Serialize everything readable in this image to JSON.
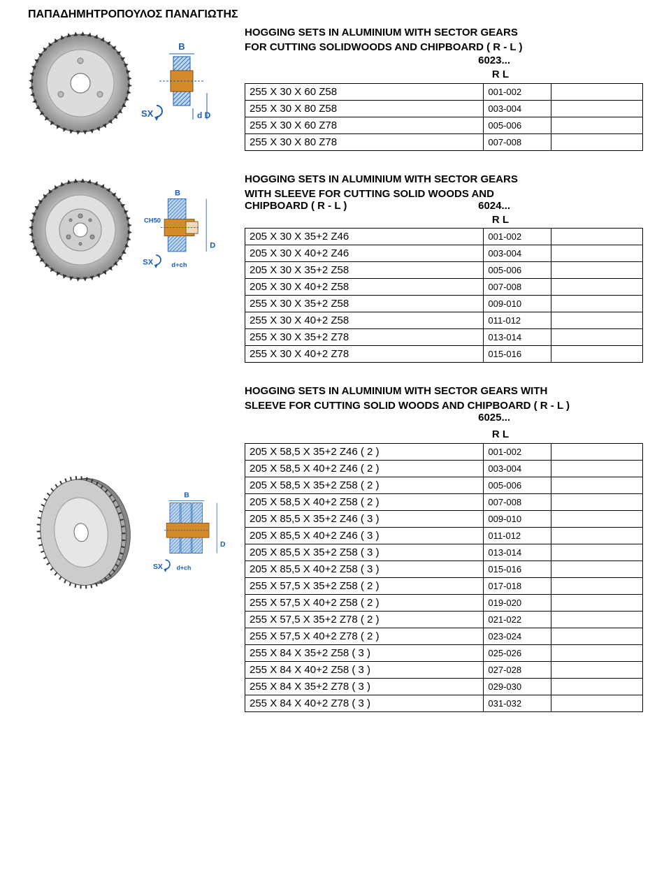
{
  "page_header": "ΠΑΠΑΔΗΜΗΤΡΟΠΟΥΛΟΣ ΠΑΝΑΓΙΩΤΗΣ",
  "colors": {
    "accent_blue": "#2967b0",
    "text": "#000000",
    "bg": "#ffffff",
    "sx_blue": "#1a5fb4",
    "diagram_orange": "#d38b2b",
    "diagram_light": "#bfd6ef"
  },
  "rl_label": "R    L",
  "section1": {
    "title": "HOGGING SETS IN ALUMINIUM WITH SECTOR GEARS",
    "subtitle": "FOR CUTTING SOLIDWOODS AND CHIPBOARD   ( R - L )",
    "code": "6023...",
    "rows": [
      {
        "spec": "255 X 30 X 60  Z58",
        "code": "001-002"
      },
      {
        "spec": "255 X 30 X 80  Z58",
        "code": "003-004"
      },
      {
        "spec": "255 X 30 X 60  Z78",
        "code": "005-006"
      },
      {
        "spec": "255 X 30 X 80  Z78",
        "code": "007-008"
      }
    ]
  },
  "section2": {
    "title": "HOGGING SETS IN ALUMINIUM WITH SECTOR GEARS",
    "subtitle1": "WITH SLEEVE FOR CUTTING SOLID WOODS AND",
    "subtitle2": "CHIPBOARD  ( R - L )",
    "code": "6024...",
    "rows": [
      {
        "spec": "205 X 30 X 35+2  Z46",
        "code": "001-002"
      },
      {
        "spec": "205 X 30 X 40+2  Z46",
        "code": "003-004"
      },
      {
        "spec": "205 X 30 X 35+2  Z58",
        "code": "005-006"
      },
      {
        "spec": "205 X 30 X 40+2  Z58",
        "code": "007-008"
      },
      {
        "spec": "255 X 30 X 35+2  Z58",
        "code": "009-010"
      },
      {
        "spec": "255 X 30 X 40+2  Z58",
        "code": "011-012"
      },
      {
        "spec": "255 X 30 X 35+2  Z78",
        "code": "013-014"
      },
      {
        "spec": "255 X 30 X 40+2  Z78",
        "code": "015-016"
      }
    ]
  },
  "section3": {
    "title": "HOGGING SETS IN ALUMINIUM WITH SECTOR GEARS  WITH",
    "subtitle": "SLEEVE FOR CUTTING SOLID WOODS AND CHIPBOARD  ( R - L )",
    "code": "6025...",
    "rows": [
      {
        "spec": "205 X 58,5 X 35+2  Z46   ( 2 )",
        "code": "001-002"
      },
      {
        "spec": "205 X 58,5 X 40+2  Z46   ( 2 )",
        "code": "003-004"
      },
      {
        "spec": "205 X 58,5 X 35+2  Z58   ( 2 )",
        "code": "005-006"
      },
      {
        "spec": "205 X 58,5 X 40+2  Z58   ( 2 )",
        "code": "007-008"
      },
      {
        "spec": "205 X 85,5 X 35+2  Z46   ( 3 )",
        "code": "009-010"
      },
      {
        "spec": "205 X 85,5 X 40+2  Z46   ( 3 )",
        "code": "011-012"
      },
      {
        "spec": "205 X 85,5 X 35+2  Z58   ( 3 )",
        "code": "013-014"
      },
      {
        "spec": "205 X 85,5 X 40+2  Z58   ( 3 )",
        "code": "015-016"
      },
      {
        "spec": "255 X 57,5 X 35+2  Z58   ( 2 )",
        "code": "017-018"
      },
      {
        "spec": "255 X 57,5 X 40+2  Z58   ( 2 )",
        "code": "019-020"
      },
      {
        "spec": "255 X 57,5 X 35+2  Z78   ( 2 )",
        "code": "021-022"
      },
      {
        "spec": "255 X 57,5 X 40+2  Z78   ( 2 )",
        "code": "023-024"
      },
      {
        "spec": "255 X 84    X 35+2  Z58   ( 3 )",
        "code": "025-026"
      },
      {
        "spec": "255 X 84    X 40+2  Z58   ( 3 )",
        "code": "027-028"
      },
      {
        "spec": "255 X 84    X 35+2  Z78   ( 3 )",
        "code": "029-030"
      },
      {
        "spec": "255 X 84    X 40+2  Z78   ( 3 )",
        "code": "031-032"
      }
    ]
  },
  "diagram_labels": {
    "sx": "SX",
    "b": "B",
    "d": "d",
    "D": "D",
    "ch50": "CH50",
    "dch": "d+ch"
  }
}
